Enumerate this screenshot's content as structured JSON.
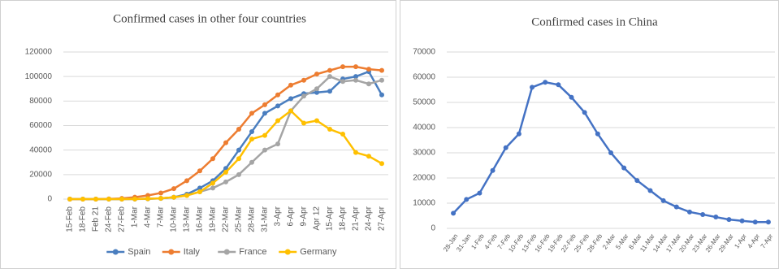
{
  "chart_data": [
    {
      "type": "line",
      "title": "Confirmed cases in other four countries",
      "categories": [
        "15-Feb",
        "18-Feb",
        "Feb 21",
        "24-Feb",
        "27-Feb",
        "1-Mar",
        "4-Mar",
        "7-Mar",
        "10-Mar",
        "13-Mar",
        "16-Mar",
        "19-Mar",
        "22-Mar",
        "25-Mar",
        "28-Mar",
        "31-Mar",
        "3-Apr",
        "6-Apr",
        "9-Apr",
        "Apr 12",
        "15-Apr",
        "18-Apr",
        "21-Apr",
        "24-Apr",
        "27-Apr"
      ],
      "series": [
        {
          "name": "Spain",
          "color": "#4a7ebf",
          "values": [
            0,
            0,
            0,
            0,
            0,
            100,
            300,
            600,
            1500,
            4000,
            9000,
            15000,
            25000,
            40000,
            55000,
            70000,
            76000,
            82000,
            86000,
            87000,
            88000,
            98000,
            100000,
            104000,
            85000
          ]
        },
        {
          "name": "Italy",
          "color": "#ed7d31",
          "values": [
            0,
            0,
            0,
            200,
            600,
            1600,
            3000,
            5000,
            8500,
            15000,
            23000,
            33000,
            46000,
            57000,
            70000,
            77000,
            85000,
            93000,
            97000,
            102000,
            105000,
            108000,
            108000,
            106000,
            105000
          ]
        },
        {
          "name": "France",
          "color": "#a5a5a5",
          "values": [
            0,
            0,
            0,
            0,
            0,
            100,
            200,
            600,
            1500,
            3000,
            6000,
            9000,
            14000,
            20000,
            30000,
            40000,
            45000,
            72000,
            84000,
            90000,
            100000,
            96000,
            97000,
            94000,
            97000
          ]
        },
        {
          "name": "Germany",
          "color": "#ffc000",
          "values": [
            0,
            0,
            0,
            0,
            0,
            100,
            300,
            700,
            1500,
            3000,
            6000,
            13000,
            22000,
            33000,
            49000,
            52000,
            64000,
            72000,
            62000,
            64000,
            57000,
            53000,
            38000,
            35000,
            29000
          ]
        }
      ],
      "ylim": [
        0,
        120000
      ],
      "yticks": [
        0,
        20000,
        40000,
        60000,
        80000,
        100000,
        120000
      ],
      "grid": true,
      "legend": "bottom"
    },
    {
      "type": "line",
      "title": "Confirmed cases in China",
      "categories": [
        "28-Jan",
        "31-Jan",
        "1-Feb",
        "4-Feb",
        "7-Feb",
        "10-Feb",
        "13-Feb",
        "16-Feb",
        "19-Feb",
        "22-Feb",
        "25-Feb",
        "28-Feb",
        "2-Mar",
        "5-Mar",
        "8-Mar",
        "11-Mar",
        "14-Mar",
        "17-Mar",
        "20-Mar",
        "23-Mar",
        "26-Mar",
        "29-Mar",
        "1-Apr",
        "4-Apr",
        "7-Apr"
      ],
      "values": [
        6000,
        11500,
        14000,
        23000,
        32000,
        37500,
        56000,
        58000,
        57000,
        52000,
        46000,
        37500,
        30000,
        24000,
        19000,
        15000,
        11000,
        8500,
        6500,
        5500,
        4500,
        3500,
        3000,
        2500,
        2500
      ],
      "color": "#4472c4",
      "ylim": [
        0,
        70000
      ],
      "yticks": [
        0,
        10000,
        20000,
        30000,
        40000,
        50000,
        60000,
        70000
      ],
      "grid": true
    }
  ]
}
